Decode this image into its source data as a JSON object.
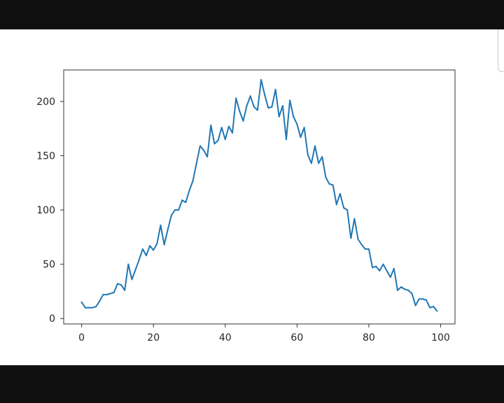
{
  "chart_data": {
    "type": "line",
    "title": "",
    "xlabel": "",
    "ylabel": "",
    "xlim": [
      -5,
      104
    ],
    "ylim": [
      -5,
      229
    ],
    "grid": false,
    "line_color": "#1f77b4",
    "x_ticks": [
      0,
      20,
      40,
      60,
      80,
      100
    ],
    "y_ticks": [
      0,
      50,
      100,
      150,
      200
    ],
    "x_tick_labels": [
      "0",
      "20",
      "40",
      "60",
      "80",
      "100"
    ],
    "y_tick_labels": [
      "0",
      "50",
      "100",
      "150",
      "200"
    ],
    "series": [
      {
        "values": [
          15,
          10,
          10,
          10,
          11,
          16,
          22,
          22,
          23,
          24,
          32,
          31,
          26,
          50,
          36,
          45,
          54,
          64,
          58,
          67,
          63,
          69,
          86,
          68,
          82,
          95,
          100,
          100,
          109,
          107,
          118,
          127,
          143,
          159,
          155,
          149,
          178,
          161,
          164,
          176,
          165,
          177,
          171,
          203,
          191,
          182,
          196,
          205,
          195,
          192,
          220,
          206,
          194,
          195,
          211,
          186,
          196,
          165,
          201,
          186,
          179,
          167,
          176,
          151,
          143,
          159,
          143,
          149,
          130,
          124,
          123,
          105,
          115,
          102,
          100,
          74,
          92,
          73,
          68,
          64,
          64,
          47,
          48,
          44,
          50,
          44,
          38,
          46,
          26,
          29,
          27,
          26,
          23,
          12,
          18,
          18,
          17,
          10,
          11,
          7
        ]
      }
    ]
  }
}
